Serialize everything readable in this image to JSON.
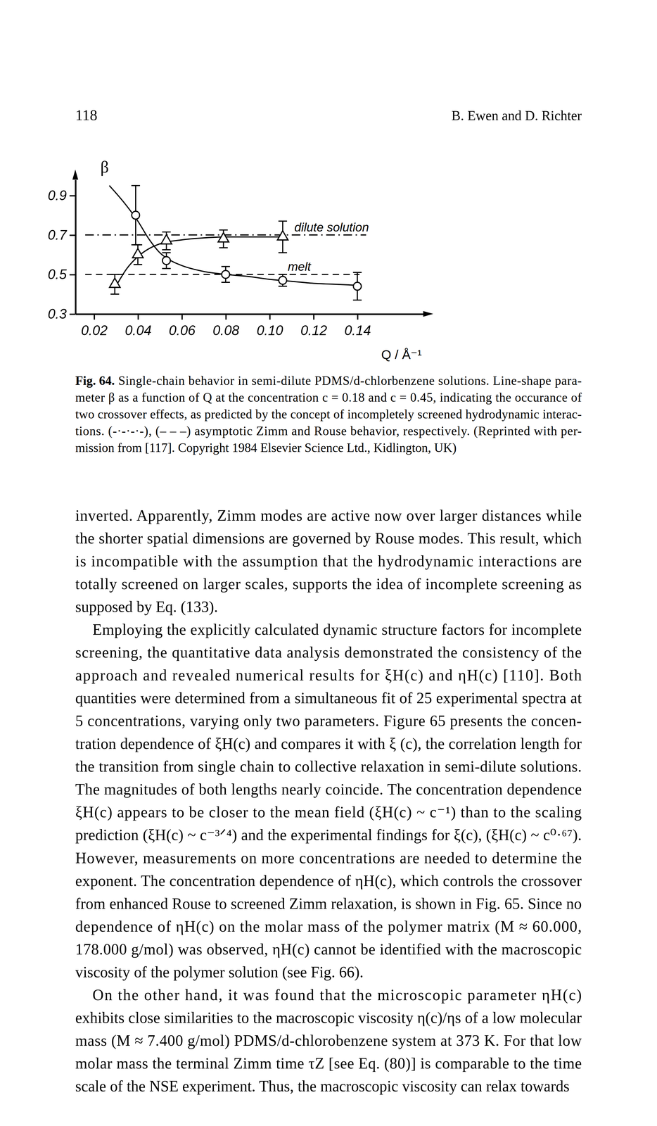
{
  "page": {
    "number": "118",
    "running_head": "B. Ewen and D. Richter"
  },
  "chart_data": {
    "type": "scatter",
    "y_label": "β",
    "x_label": "Q / Å⁻¹",
    "xlim": [
      0.0115,
      0.17
    ],
    "ylim": [
      0.3,
      0.98
    ],
    "xticks": [
      0.02,
      0.04,
      0.06,
      0.08,
      {
        "value": 0.1,
        "label": "0.10"
      },
      0.12,
      0.14
    ],
    "yticks": [
      0.3,
      0.5,
      0.7,
      0.9
    ],
    "series": [
      {
        "type": "line",
        "line_style": "dashdot",
        "label": "dilute solution",
        "x": [
          0.016,
          0.144
        ],
        "values": [
          0.7,
          0.7
        ]
      },
      {
        "type": "line",
        "line_style": "dashed",
        "label": "melt",
        "x": [
          0.016,
          0.141
        ],
        "values": [
          0.5,
          0.5
        ]
      },
      {
        "type": "line",
        "line_style": "solid",
        "x": [
          0.027,
          0.034,
          0.04,
          0.045,
          0.05,
          0.055,
          0.06,
          0.07,
          0.08,
          0.09,
          0.1,
          0.11,
          0.12,
          0.13,
          0.14
        ],
        "values": [
          0.95,
          0.86,
          0.77,
          0.68,
          0.61,
          0.57,
          0.545,
          0.515,
          0.5,
          0.49,
          0.475,
          0.465,
          0.455,
          0.45,
          0.445
        ]
      },
      {
        "type": "line",
        "line_style": "solid",
        "x": [
          0.03,
          0.035,
          0.04,
          0.045,
          0.05,
          0.06,
          0.07,
          0.08,
          0.09,
          0.105
        ],
        "values": [
          0.44,
          0.53,
          0.59,
          0.63,
          0.655,
          0.675,
          0.685,
          0.69,
          0.69,
          0.69
        ]
      },
      {
        "type": "scatter",
        "marker": "circle",
        "x": [
          0.039,
          0.053,
          0.08,
          0.106,
          0.14
        ],
        "values": [
          0.8,
          0.57,
          0.5,
          0.47,
          0.44
        ],
        "errors": [
          0.15,
          0.04,
          0.04,
          0.03,
          0.07
        ]
      },
      {
        "type": "scatter",
        "marker": "triangle",
        "x": [
          0.0295,
          0.04,
          0.053,
          0.079,
          0.106
        ],
        "values": [
          0.45,
          0.6,
          0.67,
          0.68,
          0.69
        ],
        "errors": [
          0.05,
          0.05,
          0.045,
          0.045,
          0.08
        ]
      }
    ]
  },
  "caption": {
    "label": "Fig. 64.",
    "lines": [
      "Single-chain behavior in semi-dilute PDMS/d-chlorbenzene solutions. Line-shape para-",
      "meter β as a function of Q at the concentration c = 0.18 and c = 0.45, indicating the occurance of",
      "two crossover effects, as predicted by the concept of incompletely screened hydrodynamic interac-",
      "tions. (-·-·-·-), (– – –) asymptotic Zimm and Rouse behavior, respectively. (Reprinted with per-",
      "mission from [117]. Copyright 1984 Elsevier Science Ltd., Kidlington, UK)"
    ]
  },
  "body": {
    "paragraphs": [
      [
        "inverted. Apparently, Zimm modes are active now over larger distances while",
        "the shorter spatial dimensions are governed by Rouse modes. This result, which",
        "is incompatible with the assumption that the hydrodynamic interactions are",
        "totally screened on larger scales, supports the idea of incomplete screening as",
        "supposed by Eq. (133)."
      ],
      [
        "Employing the explicitly calculated dynamic structure factors for incomplete",
        "screening, the quantitative data analysis demonstrated the consistency of the",
        "approach and revealed numerical results for ξH(c) and ηH(c) [110]. Both",
        "quantities were determined from a simultaneous fit of 25 experimental spectra at",
        "5 concentrations, varying only two parameters. Figure 65 presents the concen-",
        "tration dependence of ξH(c) and compares it with ξ (c), the correlation length for",
        "the transition from single chain to collective relaxation in semi-dilute solutions.",
        "The magnitudes of both lengths nearly coincide. The concentration dependence",
        "ξH(c) appears to be closer to the mean field (ξH(c) ~ c⁻¹) than to the scaling",
        "prediction (ξH(c) ~ c⁻³ᐟ⁴) and the experimental findings for ξ(c), (ξH(c) ~ c⁰·⁶⁷).",
        "However, measurements on more concentrations are needed to determine the",
        "exponent. The concentration dependence of ηH(c), which controls the crossover",
        "from enhanced Rouse to screened Zimm relaxation, is shown in Fig. 65. Since no",
        "dependence of ηH(c) on the molar mass of the polymer matrix (M ≈ 60.000,",
        "178.000 g/mol) was observed, ηH(c) cannot be identified with the macroscopic",
        "viscosity of the polymer solution (see Fig. 66)."
      ],
      [
        "On the other hand, it was found that the microscopic parameter ηH(c)",
        "exhibits close similarities to the macroscopic viscosity η(c)/ηs of a low molecular",
        "mass (M ≈ 7.400 g/mol) PDMS/d-chlorobenzene system at 373 K. For that low",
        "molar mass the terminal Zimm time τZ [see Eq. (80)] is comparable to the time",
        "scale of the NSE experiment. Thus, the macroscopic viscosity can relax towards"
      ]
    ]
  }
}
